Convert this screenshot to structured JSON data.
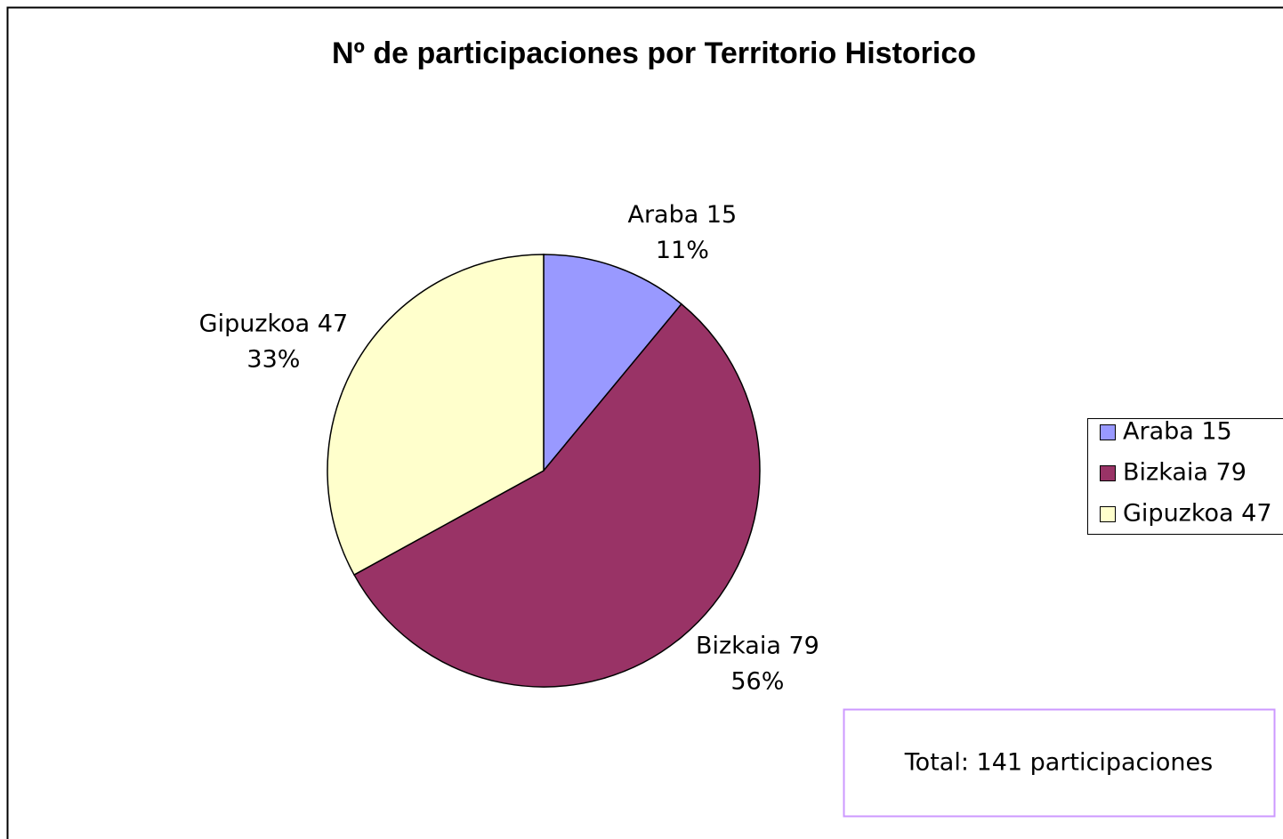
{
  "chart_data": {
    "type": "pie",
    "title": "Nº de participaciones por Territorio Historico",
    "categories": [
      "Araba 15",
      "Bizkaia 79",
      "Gipuzkoa 47"
    ],
    "values": [
      11,
      56,
      33
    ],
    "value_labels": [
      "11%",
      "56%",
      "33%"
    ],
    "colors": [
      "#9999ff",
      "#993366",
      "#ffffcc"
    ],
    "annotation": "Total: 141 participaciones"
  }
}
